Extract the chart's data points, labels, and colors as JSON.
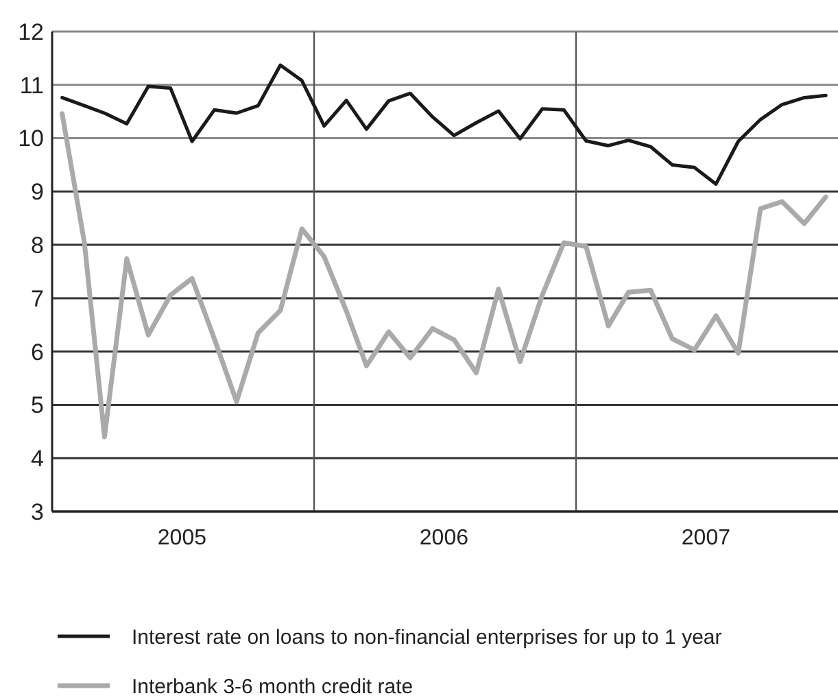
{
  "chart_data": {
    "type": "line",
    "x": [
      "2005-01-15",
      "2005-02-15",
      "2005-03-15",
      "2005-04-15",
      "2005-05-15",
      "2005-06-15",
      "2005-07-15",
      "2005-08-15",
      "2005-09-15",
      "2005-10-15",
      "2005-11-15",
      "2005-12-15",
      "2006-01-15",
      "2006-02-15",
      "2006-03-15",
      "2006-04-15",
      "2006-05-15",
      "2006-06-15",
      "2006-07-15",
      "2006-08-15",
      "2006-09-15",
      "2006-10-15",
      "2006-11-15",
      "2006-12-15",
      "2007-01-15",
      "2007-02-15",
      "2007-03-15",
      "2007-04-15",
      "2007-05-15",
      "2007-06-15",
      "2007-07-15",
      "2007-08-15",
      "2007-09-15",
      "2007-10-15",
      "2007-11-15",
      "2007-12-15"
    ],
    "series": [
      {
        "name": "Interest rate on loans to non-financial enterprises for up to 1 year",
        "color": "#1a1a1a",
        "values": [
          10.76,
          10.61,
          10.47,
          10.27,
          10.97,
          10.94,
          9.94,
          10.53,
          10.47,
          10.61,
          11.37,
          11.08,
          10.23,
          10.71,
          10.17,
          10.7,
          10.84,
          10.4,
          10.05,
          10.29,
          10.51,
          9.99,
          10.55,
          10.53,
          9.95,
          9.86,
          9.96,
          9.84,
          9.5,
          9.45,
          9.14,
          9.94,
          10.35,
          10.63,
          10.76,
          10.8
        ]
      },
      {
        "name": "Interbank 3-6 month credit rate",
        "color": "#aaaaaa",
        "values": [
          10.46,
          8.04,
          4.4,
          7.74,
          6.31,
          7.06,
          7.37,
          6.24,
          5.06,
          6.35,
          6.77,
          8.3,
          7.78,
          6.76,
          5.73,
          6.37,
          5.88,
          6.43,
          6.22,
          5.6,
          7.17,
          5.81,
          7.06,
          8.04,
          7.97,
          6.48,
          7.11,
          7.15,
          6.24,
          6.03,
          6.67,
          5.97,
          8.68,
          8.81,
          8.4,
          8.9
        ]
      }
    ],
    "xlim": [
      "2005-01-01",
      "2008-01-01"
    ],
    "xticks": [
      {
        "value": "2005-07-01",
        "label": "2005"
      },
      {
        "value": "2006-07-01",
        "label": "2006"
      },
      {
        "value": "2007-07-01",
        "label": "2007"
      }
    ],
    "ylim": [
      3,
      12
    ],
    "yticks": [
      3,
      4,
      5,
      6,
      7,
      8,
      9,
      10,
      11,
      12
    ],
    "grid": "y",
    "ref_lines": [
      {
        "axis": "x",
        "value": "2006-01-01",
        "color": "#555555"
      },
      {
        "axis": "x",
        "value": "2007-01-01",
        "color": "#555555"
      }
    ],
    "legend": "bottom",
    "marker": "none",
    "line_style": "solid"
  }
}
